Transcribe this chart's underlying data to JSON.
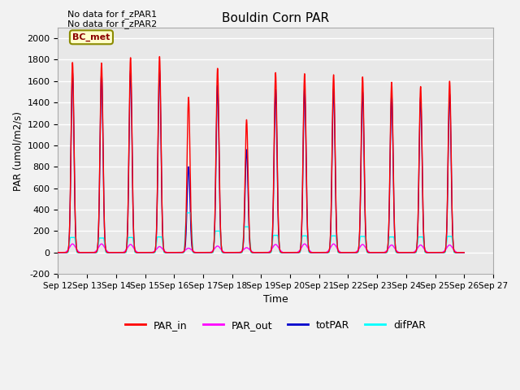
{
  "title": "Bouldin Corn PAR",
  "xlabel": "Time",
  "ylabel": "PAR (umol/m2/s)",
  "ylim": [
    -200,
    2100
  ],
  "xtick_labels": [
    "Sep 12",
    "Sep 13",
    "Sep 14",
    "Sep 15",
    "Sep 16",
    "Sep 17",
    "Sep 18",
    "Sep 19",
    "Sep 20",
    "Sep 21",
    "Sep 22",
    "Sep 23",
    "Sep 24",
    "Sep 25",
    "Sep 26",
    "Sep 27"
  ],
  "no_data_text": [
    "No data for f_zPAR1",
    "No data for f_zPAR2"
  ],
  "legend_label": "BC_met",
  "legend_label_bg": "#FFFFCC",
  "legend_label_border": "#8B8B00",
  "colors": {
    "PAR_in": "#FF0000",
    "PAR_out": "#FF00FF",
    "totPAR": "#0000CC",
    "difPAR": "#00FFFF"
  },
  "background_color": "#E8E8E8",
  "grid_color": "#FFFFFF",
  "peaks": [
    {
      "day": 0,
      "PAR_in": 1775,
      "PAR_out": 80,
      "totPAR": 1680,
      "difPAR": 140
    },
    {
      "day": 1,
      "PAR_in": 1770,
      "PAR_out": 80,
      "totPAR": 1675,
      "difPAR": 135
    },
    {
      "day": 2,
      "PAR_in": 1820,
      "PAR_out": 75,
      "totPAR": 1700,
      "difPAR": 140
    },
    {
      "day": 3,
      "PAR_in": 1830,
      "PAR_out": 55,
      "totPAR": 1705,
      "difPAR": 145
    },
    {
      "day": 4,
      "PAR_in": 1450,
      "PAR_out": 40,
      "totPAR": 800,
      "difPAR": 370
    },
    {
      "day": 5,
      "PAR_in": 1720,
      "PAR_out": 60,
      "totPAR": 1560,
      "difPAR": 200
    },
    {
      "day": 6,
      "PAR_in": 1240,
      "PAR_out": 45,
      "totPAR": 960,
      "difPAR": 240
    },
    {
      "day": 7,
      "PAR_in": 1680,
      "PAR_out": 75,
      "totPAR": 1520,
      "difPAR": 160
    },
    {
      "day": 8,
      "PAR_in": 1670,
      "PAR_out": 80,
      "totPAR": 1530,
      "difPAR": 155
    },
    {
      "day": 9,
      "PAR_in": 1660,
      "PAR_out": 80,
      "totPAR": 1530,
      "difPAR": 155
    },
    {
      "day": 10,
      "PAR_in": 1640,
      "PAR_out": 75,
      "totPAR": 1500,
      "difPAR": 150
    },
    {
      "day": 11,
      "PAR_in": 1590,
      "PAR_out": 70,
      "totPAR": 1470,
      "difPAR": 145
    },
    {
      "day": 12,
      "PAR_in": 1550,
      "PAR_out": 70,
      "totPAR": 1450,
      "difPAR": 145
    },
    {
      "day": 13,
      "PAR_in": 1600,
      "PAR_out": 70,
      "totPAR": 1480,
      "difPAR": 150
    }
  ]
}
